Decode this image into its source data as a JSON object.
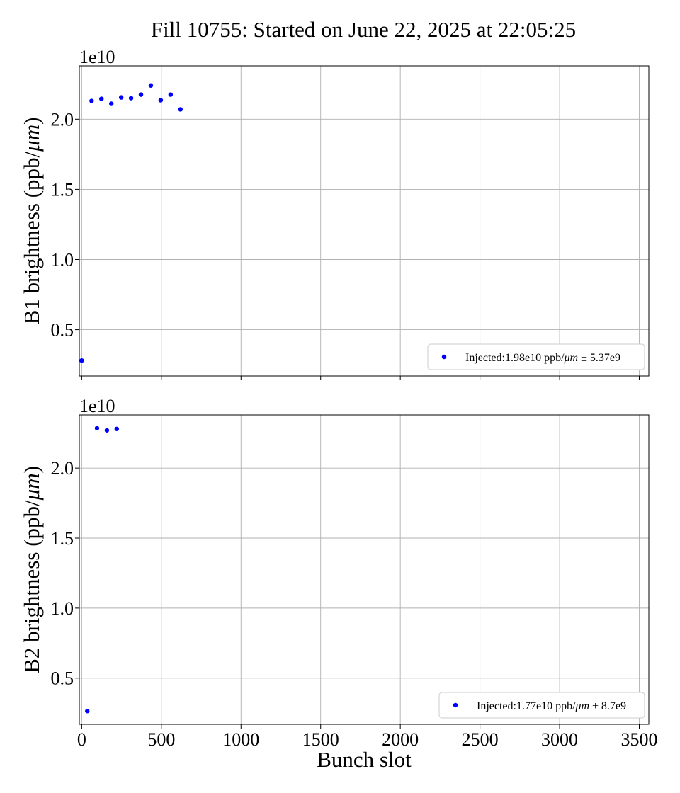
{
  "figure": {
    "title": "Fill 10755: Started on June 22, 2025 at 22:05:25"
  },
  "chart_data": [
    {
      "type": "scatter",
      "title": "",
      "ylabel": "B1 brightness (ppb/μm)",
      "xlabel": "",
      "offset_label": "1e10",
      "xlim": [
        -15,
        3560
      ],
      "ylim": [
        1700000000.0,
        23800000000.0
      ],
      "xticks": [
        0,
        500,
        1000,
        1500,
        2000,
        2500,
        3000,
        3500
      ],
      "xtick_labels_visible": false,
      "yticks": [
        5000000000.0,
        10000000000.0,
        15000000000.0,
        20000000000.0
      ],
      "ytick_labels": [
        "0.5",
        "1.0",
        "1.5",
        "2.0"
      ],
      "grid": true,
      "legend_position": "lower-right",
      "series": [
        {
          "name": "Injected:1.98e10 ppb/μm ± 5.37e9",
          "color": "#0000ff",
          "x": [
            0,
            62,
            124,
            186,
            248,
            310,
            372,
            434,
            496,
            558,
            620
          ],
          "y": [
            2800000000.0,
            21300000000.0,
            21450000000.0,
            21100000000.0,
            21550000000.0,
            21500000000.0,
            21750000000.0,
            22400000000.0,
            21350000000.0,
            21750000000.0,
            20700000000.0
          ]
        }
      ]
    },
    {
      "type": "scatter",
      "title": "",
      "ylabel": "B2 brightness (ppb/μm)",
      "xlabel": "Bunch slot",
      "offset_label": "1e10",
      "xlim": [
        -15,
        3560
      ],
      "ylim": [
        1700000000.0,
        23800000000.0
      ],
      "xticks": [
        0,
        500,
        1000,
        1500,
        2000,
        2500,
        3000,
        3500
      ],
      "xtick_labels": [
        "0",
        "500",
        "1000",
        "1500",
        "2000",
        "2500",
        "3000",
        "3500"
      ],
      "xtick_labels_visible": true,
      "yticks": [
        5000000000.0,
        10000000000.0,
        15000000000.0,
        20000000000.0
      ],
      "ytick_labels": [
        "0.5",
        "1.0",
        "1.5",
        "2.0"
      ],
      "grid": true,
      "legend_position": "lower-right",
      "series": [
        {
          "name": "Injected:1.77e10 ppb/μm ± 8.7e9",
          "color": "#0000ff",
          "x": [
            35,
            96,
            158,
            220
          ],
          "y": [
            2650000000.0,
            22850000000.0,
            22700000000.0,
            22800000000.0
          ]
        }
      ]
    }
  ]
}
